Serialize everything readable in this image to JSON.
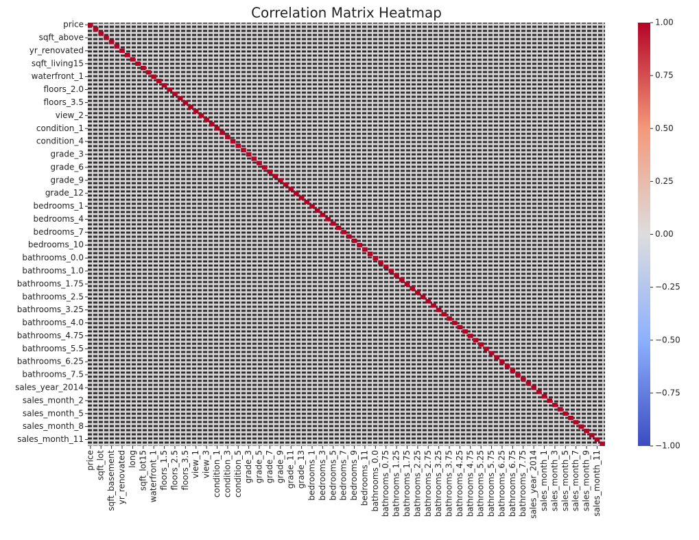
{
  "chart_data": {
    "type": "heatmap",
    "title": "Correlation Matrix Heatmap",
    "rows": [
      "price",
      null,
      null,
      "sqft_above",
      null,
      null,
      "yr_renovated",
      null,
      null,
      "sqft_living15",
      null,
      null,
      "waterfront_1",
      null,
      null,
      "floors_2.0",
      null,
      null,
      "floors_3.5",
      null,
      null,
      "view_2",
      null,
      null,
      "condition_1",
      null,
      null,
      "condition_4",
      null,
      null,
      "grade_3",
      null,
      null,
      "grade_6",
      null,
      null,
      "grade_9",
      null,
      null,
      "grade_12",
      null,
      null,
      "bedrooms_1",
      null,
      null,
      "bedrooms_4",
      null,
      null,
      "bedrooms_7",
      null,
      null,
      "bedrooms_10",
      null,
      null,
      "bathrooms_0.0",
      null,
      null,
      "bathrooms_1.0",
      null,
      null,
      "bathrooms_1.75",
      null,
      null,
      "bathrooms_2.5",
      null,
      null,
      "bathrooms_3.25",
      null,
      null,
      "bathrooms_4.0",
      null,
      null,
      "bathrooms_4.75",
      null,
      null,
      "bathrooms_5.5",
      null,
      null,
      "bathrooms_6.25",
      null,
      null,
      "bathrooms_7.5",
      null,
      null,
      "sales_year_2014",
      null,
      null,
      "sales_month_2",
      null,
      null,
      "sales_month_5",
      null,
      null,
      "sales_month_8",
      null,
      null,
      "sales_month_11",
      null
    ],
    "columns": [
      "price",
      null,
      "sqft_lot",
      null,
      "sqft_basement",
      null,
      "yr_renovated",
      null,
      "long",
      null,
      "sqft_lot15",
      null,
      "waterfront_1",
      null,
      "floors_1.5",
      null,
      "floors_2.5",
      null,
      "floors_3.5",
      null,
      "view_1",
      null,
      "view_3",
      null,
      "condition_1",
      null,
      "condition_3",
      null,
      "condition_5",
      null,
      "grade_3",
      null,
      "grade_5",
      null,
      "grade_7",
      null,
      "grade_9",
      null,
      "grade_11",
      null,
      "grade_13",
      null,
      "bedrooms_1",
      null,
      "bedrooms_3",
      null,
      "bedrooms_5",
      null,
      "bedrooms_7",
      null,
      "bedrooms_9",
      null,
      "bedrooms_11",
      null,
      "bathrooms_0.0",
      null,
      "bathrooms_0.75",
      null,
      "bathrooms_1.25",
      null,
      "bathrooms_1.75",
      null,
      "bathrooms_2.25",
      null,
      "bathrooms_2.75",
      null,
      "bathrooms_3.25",
      null,
      "bathrooms_3.75",
      null,
      "bathrooms_4.25",
      null,
      "bathrooms_4.75",
      null,
      "bathrooms_5.25",
      null,
      "bathrooms_5.75",
      null,
      "bathrooms_6.25",
      null,
      "bathrooms_6.75",
      null,
      "bathrooms_7.75",
      null,
      "sales_year_2014",
      null,
      "sales_month_1",
      null,
      "sales_month_3",
      null,
      "sales_month_5",
      null,
      "sales_month_7",
      null,
      "sales_month_9",
      null,
      "sales_month_11",
      null
    ],
    "diagonal": [
      1,
      1,
      1,
      1,
      1,
      1,
      1,
      1,
      1,
      1,
      1,
      1,
      1,
      1,
      1,
      1,
      1,
      1,
      1,
      1,
      1,
      1,
      1,
      1,
      1,
      1,
      1,
      1,
      1,
      1,
      1,
      1,
      1,
      1,
      1,
      1,
      1,
      1,
      1,
      1,
      1,
      1,
      1,
      1,
      1,
      1,
      1,
      1,
      1,
      1,
      1,
      1,
      1,
      1,
      1,
      1,
      1,
      1,
      1,
      1,
      1,
      1,
      1,
      1,
      1,
      1,
      1,
      1,
      1,
      1,
      1,
      1,
      1,
      1,
      1,
      1,
      1,
      1,
      1,
      1,
      1,
      1,
      1,
      1,
      1,
      1,
      1,
      1,
      1,
      1,
      1,
      1,
      1,
      1,
      1,
      1,
      1,
      1
    ],
    "colormap": [
      "#3b4cc0",
      "#8db0fe",
      "#dddddd",
      "#f4987a",
      "#b40426"
    ],
    "clim": [
      -1,
      1
    ],
    "cticks": [
      {
        "value": 1,
        "label": "1.00"
      },
      {
        "value": 0.75,
        "label": "0.75"
      },
      {
        "value": 0.5,
        "label": "0.50"
      },
      {
        "value": 0.25,
        "label": "0.25"
      },
      {
        "value": 0,
        "label": "0.00"
      },
      {
        "value": -0.25,
        "label": "−0.25"
      },
      {
        "value": -0.5,
        "label": "−0.50"
      },
      {
        "value": -0.75,
        "label": "−0.75"
      },
      {
        "value": -1,
        "label": "−1.00"
      }
    ]
  }
}
